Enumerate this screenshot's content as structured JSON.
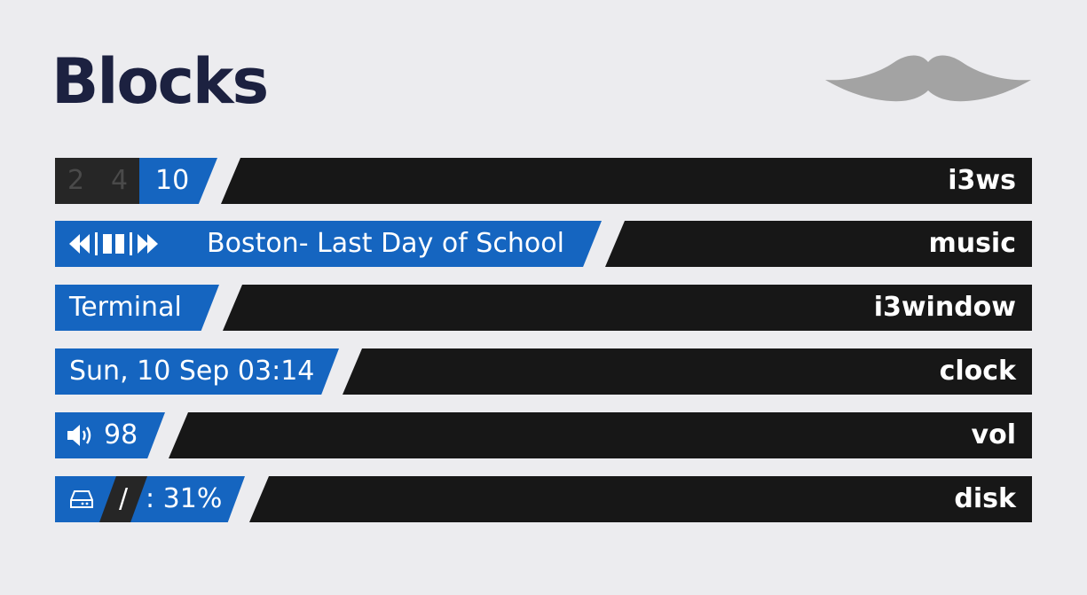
{
  "title": "Blocks",
  "logo": {
    "icon": "mustache-icon",
    "color": "#a3a3a3"
  },
  "colors": {
    "accent": "#1565c0",
    "bar": "#171717",
    "inactive": "#262626",
    "background": "#ececef",
    "title": "#1c2140"
  },
  "blocks": [
    {
      "name": "i3ws",
      "workspaces": [
        {
          "label": "2",
          "active": false
        },
        {
          "label": "4",
          "active": false
        },
        {
          "label": "10",
          "active": true
        }
      ]
    },
    {
      "name": "music",
      "controls": [
        "previous-icon",
        "pause-icon",
        "next-icon"
      ],
      "track": "Boston- Last Day of School"
    },
    {
      "name": "i3window",
      "window": "Terminal"
    },
    {
      "name": "clock",
      "time": "Sun, 10 Sep 03:14"
    },
    {
      "name": "vol",
      "icon": "speaker-icon",
      "value": "98"
    },
    {
      "name": "disk",
      "icon": "hard-drive-icon",
      "mount": "/",
      "value": ": 31%"
    }
  ]
}
